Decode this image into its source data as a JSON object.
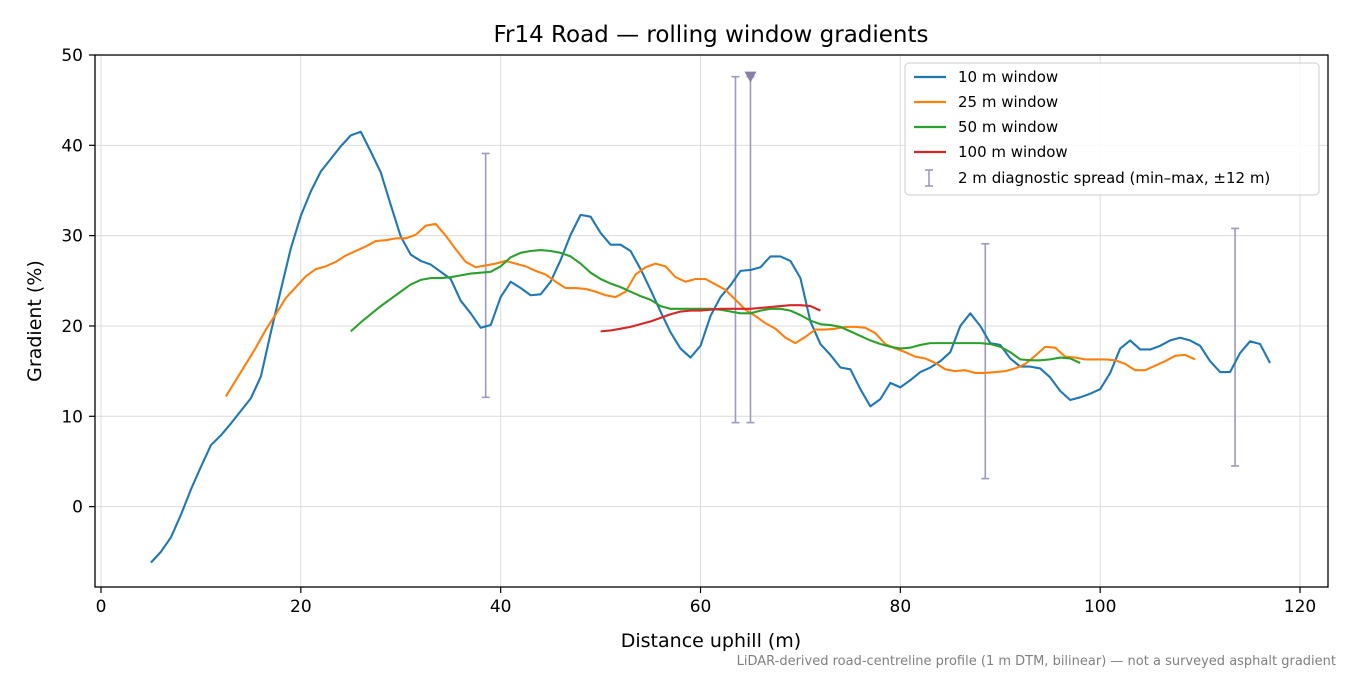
{
  "chart_data": {
    "type": "line",
    "title": "Fr14 Road — rolling window gradients",
    "xlabel": "Distance uphill (m)",
    "ylabel": "Gradient (%)",
    "footnote": "LiDAR-derived road-centreline profile (1 m DTM, bilinear) — not a surveyed asphalt gradient",
    "xlim": [
      -0.6,
      122.8
    ],
    "ylim": [
      -8.9,
      50.0
    ],
    "xticks": [
      0,
      20,
      40,
      60,
      80,
      100,
      120
    ],
    "yticks": [
      0,
      10,
      20,
      30,
      40,
      50
    ],
    "grid": true,
    "legend_position": "top-right",
    "series": [
      {
        "name": "10 m window",
        "color": "#1f77b4",
        "points": [
          [
            5,
            -6.2
          ],
          [
            6,
            -5.0
          ],
          [
            7,
            -3.4
          ],
          [
            8,
            -0.9
          ],
          [
            9,
            1.9
          ],
          [
            10,
            4.4
          ],
          [
            11,
            6.8
          ],
          [
            12,
            7.9
          ],
          [
            13,
            9.2
          ],
          [
            14,
            10.6
          ],
          [
            15,
            12.0
          ],
          [
            16,
            14.4
          ],
          [
            17,
            19.3
          ],
          [
            18,
            24.0
          ],
          [
            19,
            28.6
          ],
          [
            20,
            32.2
          ],
          [
            21,
            34.9
          ],
          [
            22,
            37.1
          ],
          [
            23,
            38.5
          ],
          [
            24,
            39.9
          ],
          [
            25,
            41.1
          ],
          [
            26,
            41.5
          ],
          [
            27,
            39.3
          ],
          [
            28,
            37.0
          ],
          [
            29,
            33.4
          ],
          [
            30,
            29.9
          ],
          [
            31,
            27.9
          ],
          [
            32,
            27.2
          ],
          [
            33,
            26.8
          ],
          [
            34,
            26.0
          ],
          [
            35,
            25.2
          ],
          [
            36,
            22.8
          ],
          [
            37,
            21.4
          ],
          [
            38,
            19.8
          ],
          [
            39,
            20.1
          ],
          [
            40,
            23.2
          ],
          [
            41,
            24.9
          ],
          [
            42,
            24.2
          ],
          [
            43,
            23.4
          ],
          [
            44,
            23.5
          ],
          [
            45,
            24.9
          ],
          [
            46,
            27.3
          ],
          [
            47,
            30.1
          ],
          [
            48,
            32.3
          ],
          [
            49,
            32.1
          ],
          [
            50,
            30.3
          ],
          [
            51,
            29.0
          ],
          [
            52,
            29.0
          ],
          [
            53,
            28.3
          ],
          [
            54,
            26.3
          ],
          [
            55,
            24.0
          ],
          [
            56,
            21.6
          ],
          [
            57,
            19.3
          ],
          [
            58,
            17.5
          ],
          [
            59,
            16.5
          ],
          [
            60,
            17.8
          ],
          [
            61,
            21.1
          ],
          [
            62,
            23.2
          ],
          [
            63,
            24.5
          ],
          [
            64,
            26.1
          ],
          [
            65,
            26.2
          ],
          [
            66,
            26.5
          ],
          [
            67,
            27.7
          ],
          [
            68,
            27.7
          ],
          [
            69,
            27.2
          ],
          [
            70,
            25.3
          ],
          [
            71,
            20.5
          ],
          [
            72,
            18.0
          ],
          [
            73,
            16.8
          ],
          [
            74,
            15.4
          ],
          [
            75,
            15.2
          ],
          [
            76,
            13.0
          ],
          [
            77,
            11.1
          ],
          [
            78,
            11.9
          ],
          [
            79,
            13.7
          ],
          [
            80,
            13.2
          ],
          [
            81,
            14.0
          ],
          [
            82,
            14.9
          ],
          [
            83,
            15.4
          ],
          [
            84,
            16.1
          ],
          [
            85,
            17.1
          ],
          [
            86,
            20.0
          ],
          [
            87,
            21.4
          ],
          [
            88,
            20.0
          ],
          [
            89,
            18.1
          ],
          [
            90,
            17.9
          ],
          [
            91,
            16.4
          ],
          [
            92,
            15.5
          ],
          [
            93,
            15.5
          ],
          [
            94,
            15.3
          ],
          [
            95,
            14.3
          ],
          [
            96,
            12.8
          ],
          [
            97,
            11.8
          ],
          [
            98,
            12.1
          ],
          [
            99,
            12.5
          ],
          [
            100,
            13.0
          ],
          [
            101,
            14.8
          ],
          [
            102,
            17.5
          ],
          [
            103,
            18.4
          ],
          [
            104,
            17.4
          ],
          [
            105,
            17.4
          ],
          [
            106,
            17.8
          ],
          [
            107,
            18.4
          ],
          [
            108,
            18.7
          ],
          [
            109,
            18.4
          ],
          [
            110,
            17.8
          ],
          [
            111,
            16.1
          ],
          [
            112,
            14.9
          ],
          [
            113,
            14.9
          ],
          [
            114,
            17.0
          ],
          [
            115,
            18.3
          ],
          [
            116,
            18.0
          ],
          [
            117,
            15.9
          ]
        ]
      },
      {
        "name": "25 m window",
        "color": "#ff7f0e",
        "points": [
          [
            12.5,
            12.2
          ],
          [
            13.5,
            14.0
          ],
          [
            14.5,
            15.8
          ],
          [
            15.5,
            17.6
          ],
          [
            16.5,
            19.6
          ],
          [
            17.5,
            21.3
          ],
          [
            18.5,
            23.1
          ],
          [
            19.5,
            24.3
          ],
          [
            20.5,
            25.5
          ],
          [
            21.5,
            26.3
          ],
          [
            22.5,
            26.6
          ],
          [
            23.5,
            27.1
          ],
          [
            24.5,
            27.8
          ],
          [
            25.5,
            28.3
          ],
          [
            26.5,
            28.8
          ],
          [
            27.5,
            29.4
          ],
          [
            28.5,
            29.5
          ],
          [
            29.5,
            29.7
          ],
          [
            30.5,
            29.7
          ],
          [
            31.5,
            30.1
          ],
          [
            32.5,
            31.1
          ],
          [
            33.5,
            31.3
          ],
          [
            34.5,
            30.0
          ],
          [
            35.5,
            28.5
          ],
          [
            36.5,
            27.1
          ],
          [
            37.5,
            26.5
          ],
          [
            38.5,
            26.7
          ],
          [
            39.5,
            26.9
          ],
          [
            40.5,
            27.2
          ],
          [
            41.5,
            26.9
          ],
          [
            42.5,
            26.6
          ],
          [
            43.5,
            26.1
          ],
          [
            44.5,
            25.7
          ],
          [
            45.5,
            24.9
          ],
          [
            46.5,
            24.2
          ],
          [
            47.5,
            24.2
          ],
          [
            48.5,
            24.1
          ],
          [
            49.5,
            23.8
          ],
          [
            50.5,
            23.4
          ],
          [
            51.5,
            23.2
          ],
          [
            52.5,
            23.8
          ],
          [
            53.5,
            25.7
          ],
          [
            54.5,
            26.5
          ],
          [
            55.5,
            26.9
          ],
          [
            56.5,
            26.6
          ],
          [
            57.5,
            25.4
          ],
          [
            58.5,
            24.9
          ],
          [
            59.5,
            25.2
          ],
          [
            60.5,
            25.2
          ],
          [
            61.5,
            24.6
          ],
          [
            62.5,
            24.0
          ],
          [
            63.5,
            22.9
          ],
          [
            64.5,
            21.8
          ],
          [
            65.5,
            21.1
          ],
          [
            66.5,
            20.3
          ],
          [
            67.5,
            19.7
          ],
          [
            68.5,
            18.7
          ],
          [
            69.5,
            18.1
          ],
          [
            70.5,
            18.8
          ],
          [
            71.5,
            19.6
          ],
          [
            72.5,
            19.6
          ],
          [
            73.5,
            19.7
          ],
          [
            74.5,
            19.9
          ],
          [
            75.5,
            19.9
          ],
          [
            76.5,
            19.8
          ],
          [
            77.5,
            19.2
          ],
          [
            78.5,
            18.0
          ],
          [
            79.5,
            17.5
          ],
          [
            80.5,
            17.1
          ],
          [
            81.5,
            16.6
          ],
          [
            82.5,
            16.4
          ],
          [
            83.5,
            15.9
          ],
          [
            84.5,
            15.2
          ],
          [
            85.5,
            15.0
          ],
          [
            86.5,
            15.1
          ],
          [
            87.5,
            14.8
          ],
          [
            88.5,
            14.8
          ],
          [
            89.5,
            14.9
          ],
          [
            90.5,
            15.0
          ],
          [
            91.5,
            15.3
          ],
          [
            92.5,
            15.8
          ],
          [
            93.5,
            16.7
          ],
          [
            94.5,
            17.7
          ],
          [
            95.5,
            17.6
          ],
          [
            96.5,
            16.6
          ],
          [
            97.5,
            16.5
          ],
          [
            98.5,
            16.3
          ],
          [
            99.5,
            16.3
          ],
          [
            100.5,
            16.3
          ],
          [
            101.5,
            16.2
          ],
          [
            102.5,
            15.8
          ],
          [
            103.5,
            15.1
          ],
          [
            104.5,
            15.1
          ],
          [
            105.5,
            15.6
          ],
          [
            106.5,
            16.1
          ],
          [
            107.5,
            16.7
          ],
          [
            108.5,
            16.8
          ],
          [
            109.5,
            16.3
          ]
        ]
      },
      {
        "name": "50 m window",
        "color": "#2ca02c",
        "points": [
          [
            25,
            19.4
          ],
          [
            26,
            20.4
          ],
          [
            27,
            21.3
          ],
          [
            28,
            22.2
          ],
          [
            29,
            23.0
          ],
          [
            30,
            23.8
          ],
          [
            31,
            24.6
          ],
          [
            32,
            25.1
          ],
          [
            33,
            25.3
          ],
          [
            34,
            25.3
          ],
          [
            35,
            25.4
          ],
          [
            36,
            25.6
          ],
          [
            37,
            25.8
          ],
          [
            38,
            25.9
          ],
          [
            39,
            26.0
          ],
          [
            40,
            26.6
          ],
          [
            41,
            27.6
          ],
          [
            42,
            28.1
          ],
          [
            43,
            28.3
          ],
          [
            44,
            28.4
          ],
          [
            45,
            28.3
          ],
          [
            46,
            28.1
          ],
          [
            47,
            27.7
          ],
          [
            48,
            26.9
          ],
          [
            49,
            25.9
          ],
          [
            50,
            25.2
          ],
          [
            51,
            24.7
          ],
          [
            52,
            24.3
          ],
          [
            53,
            23.8
          ],
          [
            54,
            23.3
          ],
          [
            55,
            22.9
          ],
          [
            56,
            22.2
          ],
          [
            57,
            21.9
          ],
          [
            58,
            21.9
          ],
          [
            59,
            21.9
          ],
          [
            60,
            21.9
          ],
          [
            61,
            21.9
          ],
          [
            62,
            21.8
          ],
          [
            63,
            21.6
          ],
          [
            64,
            21.4
          ],
          [
            65,
            21.4
          ],
          [
            66,
            21.7
          ],
          [
            67,
            21.9
          ],
          [
            68,
            21.9
          ],
          [
            69,
            21.7
          ],
          [
            70,
            21.2
          ],
          [
            71,
            20.6
          ],
          [
            72,
            20.2
          ],
          [
            73,
            20.1
          ],
          [
            74,
            19.9
          ],
          [
            75,
            19.4
          ],
          [
            76,
            18.9
          ],
          [
            77,
            18.4
          ],
          [
            78,
            18.0
          ],
          [
            79,
            17.7
          ],
          [
            80,
            17.5
          ],
          [
            81,
            17.6
          ],
          [
            82,
            17.9
          ],
          [
            83,
            18.1
          ],
          [
            84,
            18.1
          ],
          [
            85,
            18.1
          ],
          [
            86,
            18.1
          ],
          [
            87,
            18.1
          ],
          [
            88,
            18.1
          ],
          [
            89,
            18.0
          ],
          [
            90,
            17.7
          ],
          [
            91,
            17.1
          ],
          [
            92,
            16.3
          ],
          [
            93,
            16.2
          ],
          [
            94,
            16.2
          ],
          [
            95,
            16.3
          ],
          [
            96,
            16.5
          ],
          [
            97,
            16.4
          ],
          [
            98,
            15.9
          ]
        ]
      },
      {
        "name": "100 m window",
        "color": "#d62728",
        "points": [
          [
            50,
            19.4
          ],
          [
            51,
            19.5
          ],
          [
            52,
            19.7
          ],
          [
            53,
            19.9
          ],
          [
            54,
            20.2
          ],
          [
            55,
            20.5
          ],
          [
            56,
            20.9
          ],
          [
            57,
            21.3
          ],
          [
            58,
            21.6
          ],
          [
            59,
            21.7
          ],
          [
            60,
            21.7
          ],
          [
            61,
            21.8
          ],
          [
            62,
            21.9
          ],
          [
            63,
            21.9
          ],
          [
            64,
            21.9
          ],
          [
            65,
            21.9
          ],
          [
            66,
            22.0
          ],
          [
            67,
            22.1
          ],
          [
            68,
            22.2
          ],
          [
            69,
            22.3
          ],
          [
            70,
            22.3
          ],
          [
            71,
            22.2
          ],
          [
            72,
            21.7
          ]
        ]
      }
    ],
    "diagnostic_spread": {
      "name": "2 m diagnostic spread (min–max, ±12 m)",
      "color": "#9a9bbd",
      "bars": [
        {
          "x": 38.5,
          "min": 12.1,
          "max": 39.1
        },
        {
          "x": 63.5,
          "min": 9.3,
          "max": 47.6
        },
        {
          "x": 65,
          "min": 9.3,
          "max": 47.6,
          "clipped_marker": true
        },
        {
          "x": 88.5,
          "min": 3.1,
          "max": 29.1
        },
        {
          "x": 113.5,
          "min": 4.5,
          "max": 30.8
        }
      ]
    }
  }
}
